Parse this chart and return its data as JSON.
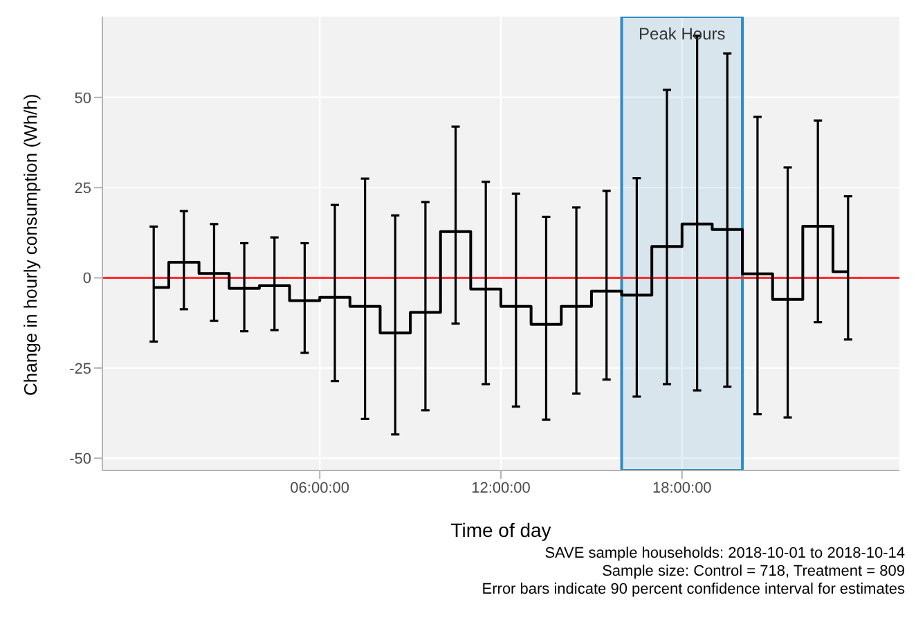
{
  "chart_data": {
    "type": "step",
    "xlabel": "Time of day",
    "ylabel": "Change in hourly consumption (Wh/h)",
    "x": [
      0.5,
      1.5,
      2.5,
      3.5,
      4.5,
      5.5,
      6.5,
      7.5,
      8.5,
      9.5,
      10.5,
      11.5,
      12.5,
      13.5,
      14.5,
      15.5,
      16.5,
      17.5,
      18.5,
      19.5,
      20.5,
      21.5,
      22.5,
      23.5
    ],
    "series": [
      {
        "color": "#000000",
        "values": [
          -2.7,
          4.3,
          1.2,
          -2.9,
          -2.2,
          -6.3,
          -5.4,
          -7.9,
          -15.3,
          -9.6,
          12.8,
          -3.1,
          -7.9,
          -12.9,
          -7.9,
          -3.7,
          -4.8,
          8.7,
          14.9,
          13.4,
          1.1,
          -6.0,
          14.3,
          1.7
        ],
        "errors": [
          [
            -17.7,
            14.2
          ],
          [
            -8.7,
            18.5
          ],
          [
            -11.9,
            14.9
          ],
          [
            -14.8,
            9.6
          ],
          [
            -14.5,
            11.2
          ],
          [
            -20.8,
            9.6
          ],
          [
            -28.6,
            20.2
          ],
          [
            -39.1,
            27.5
          ],
          [
            -43.4,
            17.3
          ],
          [
            -36.7,
            21.0
          ],
          [
            -12.7,
            41.9
          ],
          [
            -29.5,
            26.6
          ],
          [
            -35.7,
            23.3
          ],
          [
            -39.3,
            16.9
          ],
          [
            -32.1,
            19.5
          ],
          [
            -28.2,
            24.1
          ],
          [
            -32.9,
            27.6
          ],
          [
            -29.5,
            52.1
          ],
          [
            -31.2,
            67.1
          ],
          [
            -30.2,
            62.2
          ],
          [
            -37.8,
            44.6
          ],
          [
            -38.7,
            30.6
          ],
          [
            -12.3,
            43.6
          ],
          [
            -17.1,
            22.6
          ]
        ]
      }
    ],
    "xlim": [
      -1.2,
      25.2
    ],
    "xticks": [
      {
        "value": 6,
        "label": "06:00:00"
      },
      {
        "value": 12,
        "label": "12:00:00"
      },
      {
        "value": 18,
        "label": "18:00:00"
      }
    ],
    "ylim": [
      -53.4,
      72.4
    ],
    "yticks": [
      -50,
      -25,
      0,
      25,
      50
    ],
    "grid": true,
    "ref_lines": [
      {
        "axis": "y",
        "value": 0,
        "color": "#ff2a2a"
      }
    ],
    "bands": [
      {
        "axis": "x",
        "from": 16,
        "to": 20,
        "label": "Peak Hours",
        "color": "#2b8cc4"
      }
    ],
    "annotations": [
      "SAVE sample households: 2018-10-01 to 2018-10-14",
      "Sample size: Control = 718, Treatment = 809",
      "Error bars indicate 90 percent confidence interval for estimates"
    ]
  }
}
